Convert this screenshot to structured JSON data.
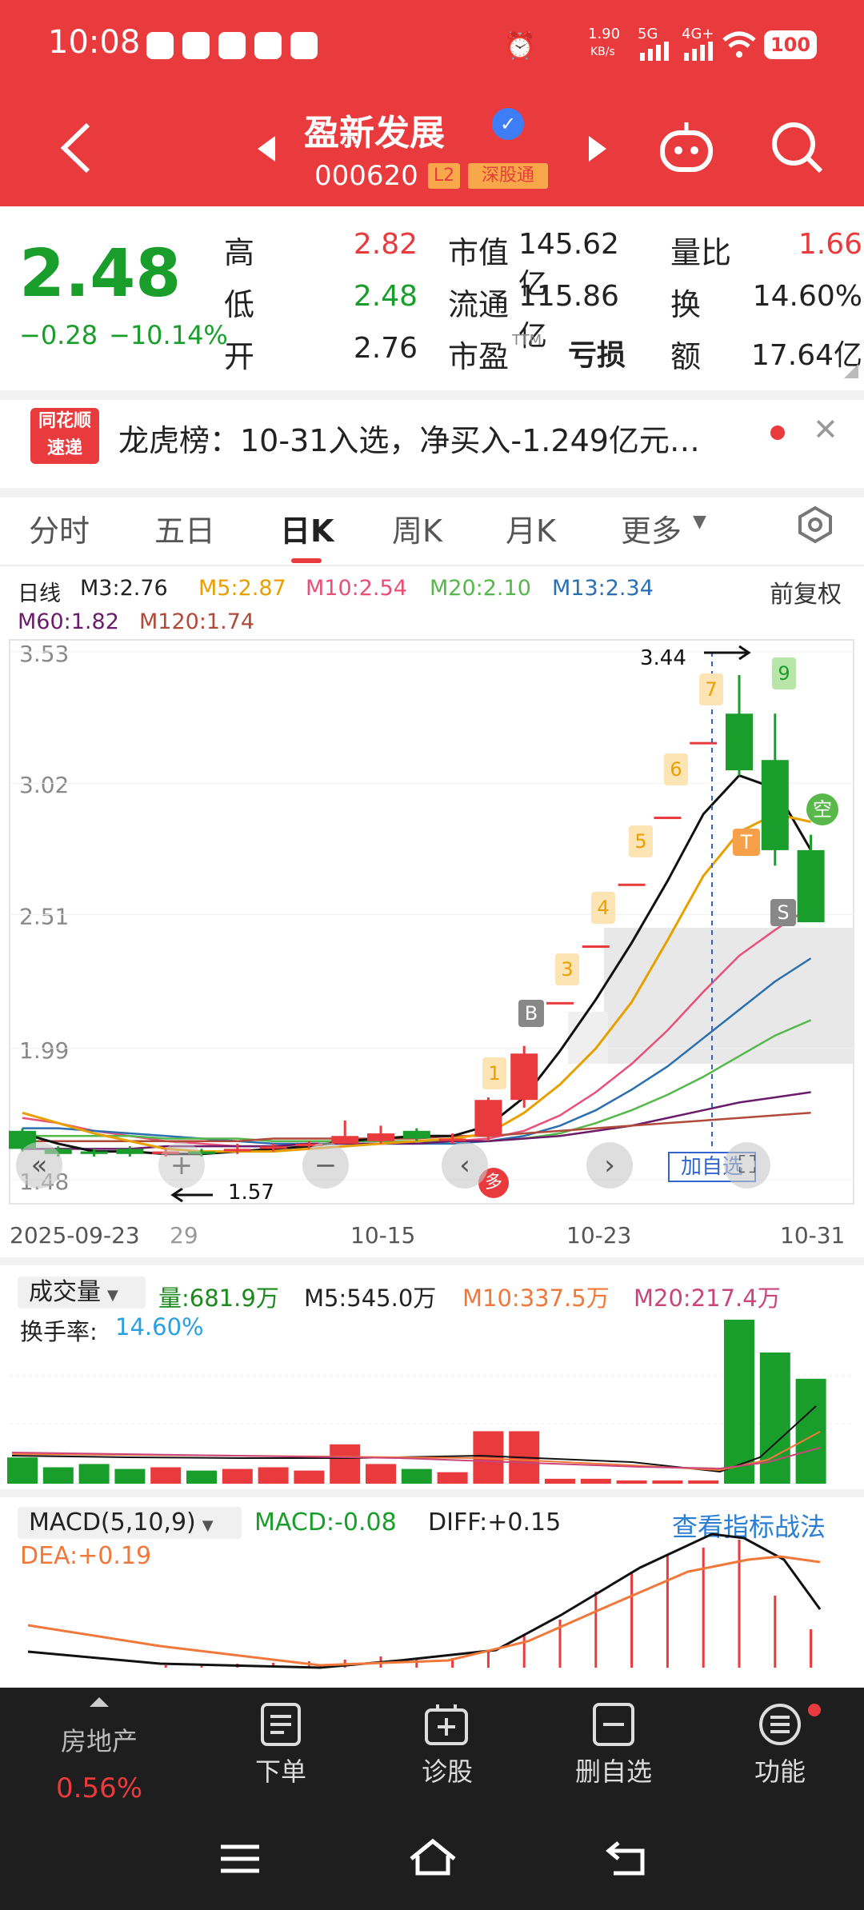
{
  "status": {
    "time": "10:08",
    "speed": "1.90",
    "speed_unit": "KB/s",
    "net1": "5G",
    "net2": "4G+",
    "battery": "100"
  },
  "header": {
    "name": "盈新发展",
    "code": "000620",
    "tag_l2": "L2",
    "tag_sgt": "深股通"
  },
  "quote": {
    "price": "2.48",
    "change": "−0.28",
    "pct": "−10.14%",
    "high_l": "高",
    "high": "2.82",
    "low_l": "低",
    "low": "2.48",
    "open_l": "开",
    "open": "2.76",
    "mcap_l": "市值",
    "mcap": "145.62亿",
    "float_l": "流通",
    "float": "115.86亿",
    "pe_l": "市盈",
    "pe_sup": "TTM",
    "pe": "亏损",
    "vr_l": "量比",
    "vr": "1.66",
    "turn_l": "换",
    "turn": "14.60%",
    "amt_l": "额",
    "amt": "17.64亿"
  },
  "news": {
    "logo_top": "同花顺",
    "logo_bot": "速递",
    "text": "龙虎榜：10-31入选，净买入-1.249亿元…"
  },
  "tabs": [
    "分时",
    "五日",
    "日K",
    "周K",
    "月K",
    "更多"
  ],
  "kline": {
    "legend": [
      {
        "t": "日线",
        "c": "#222"
      },
      {
        "t": "M3:2.76",
        "c": "#222"
      },
      {
        "t": "M5:2.87",
        "c": "#e8a000"
      },
      {
        "t": "M10:2.54",
        "c": "#e8507a"
      },
      {
        "t": "M20:2.10",
        "c": "#55b84a"
      },
      {
        "t": "M13:2.34",
        "c": "#2a6fb0"
      },
      {
        "t": "M60:1.82",
        "c": "#6a1b6a"
      },
      {
        "t": "M120:1.74",
        "c": "#b04a3a"
      }
    ],
    "fq": "前复权",
    "y_labels": [
      "3.53",
      "3.02",
      "2.51",
      "1.99",
      "1.48"
    ],
    "x_labels": [
      "2025-09-23",
      "29",
      "10-15",
      "10-23",
      "10-31"
    ],
    "hi": "3.44",
    "lo": "1.57",
    "add_fav": "加自选",
    "nums": [
      "1",
      "3",
      "4",
      "5",
      "6",
      "7",
      "9"
    ],
    "sig_b": "B",
    "sig_s": "S",
    "sig_t": "T",
    "sig_kong": "空",
    "sig_duo": "多"
  },
  "chart_data": {
    "type": "candlestick",
    "ylim": [
      1.48,
      3.53
    ],
    "candles": [
      {
        "o": 1.67,
        "c": 1.6,
        "h": 1.68,
        "l": 1.59
      },
      {
        "o": 1.6,
        "c": 1.58,
        "h": 1.61,
        "l": 1.57
      },
      {
        "o": 1.59,
        "c": 1.58,
        "h": 1.6,
        "l": 1.57
      },
      {
        "o": 1.6,
        "c": 1.58,
        "h": 1.61,
        "l": 1.57
      },
      {
        "o": 1.58,
        "c": 1.59,
        "h": 1.6,
        "l": 1.57
      },
      {
        "o": 1.59,
        "c": 1.58,
        "h": 1.6,
        "l": 1.57
      },
      {
        "o": 1.59,
        "c": 1.6,
        "h": 1.62,
        "l": 1.58
      },
      {
        "o": 1.6,
        "c": 1.61,
        "h": 1.62,
        "l": 1.59
      },
      {
        "o": 1.61,
        "c": 1.62,
        "h": 1.63,
        "l": 1.6
      },
      {
        "o": 1.62,
        "c": 1.65,
        "h": 1.71,
        "l": 1.62
      },
      {
        "o": 1.63,
        "c": 1.66,
        "h": 1.69,
        "l": 1.62
      },
      {
        "o": 1.67,
        "c": 1.64,
        "h": 1.68,
        "l": 1.63
      },
      {
        "o": 1.63,
        "c": 1.64,
        "h": 1.66,
        "l": 1.62
      },
      {
        "o": 1.65,
        "c": 1.79,
        "h": 1.8,
        "l": 1.63
      },
      {
        "o": 1.79,
        "c": 1.97,
        "h": 2.0,
        "l": 1.76
      },
      {
        "o": 2.17,
        "c": 2.17,
        "h": 2.17,
        "l": 2.17
      },
      {
        "o": 2.39,
        "c": 2.39,
        "h": 2.39,
        "l": 2.39
      },
      {
        "o": 2.63,
        "c": 2.63,
        "h": 2.63,
        "l": 2.63
      },
      {
        "o": 2.89,
        "c": 2.89,
        "h": 2.89,
        "l": 2.89
      },
      {
        "o": 3.18,
        "c": 3.18,
        "h": 3.18,
        "l": 3.18
      },
      {
        "o": 3.29,
        "c": 3.07,
        "h": 3.44,
        "l": 3.05
      },
      {
        "o": 3.11,
        "c": 2.76,
        "h": 3.29,
        "l": 2.7
      },
      {
        "o": 2.76,
        "c": 2.48,
        "h": 2.82,
        "l": 2.48
      }
    ],
    "ma": {
      "M3": [
        1.66,
        1.62,
        1.59,
        1.59,
        1.58,
        1.58,
        1.59,
        1.6,
        1.61,
        1.63,
        1.64,
        1.65,
        1.65,
        1.69,
        1.8,
        1.98,
        2.18,
        2.4,
        2.64,
        2.9,
        3.05,
        3.0,
        2.76
      ],
      "M5": [
        1.74,
        1.7,
        1.66,
        1.63,
        1.6,
        1.59,
        1.59,
        1.59,
        1.6,
        1.61,
        1.62,
        1.63,
        1.64,
        1.66,
        1.74,
        1.85,
        1.99,
        2.17,
        2.41,
        2.66,
        2.83,
        2.9,
        2.87
      ]
    }
  },
  "volume": {
    "title": "成交量",
    "vol": "量:681.9万",
    "m5": "M5:545.0万",
    "m10": "M10:337.5万",
    "m20": "M20:217.4万",
    "turn_l": "换手率:",
    "turn": "14.60%",
    "bars": [
      0.16,
      0.1,
      0.12,
      0.09,
      0.1,
      0.08,
      0.09,
      0.1,
      0.08,
      0.24,
      0.12,
      0.09,
      0.07,
      0.32,
      0.32,
      0.03,
      0.03,
      0.02,
      0.02,
      0.02,
      1.0,
      0.8,
      0.64
    ]
  },
  "macd": {
    "title": "MACD(5,10,9)",
    "macd": "MACD:-0.08",
    "diff": "DIFF:+0.15",
    "dea": "DEA:+0.19",
    "link": "查看指标战法"
  },
  "bottom": {
    "sector": "房地产",
    "sector_pct": "0.56%",
    "b1": "下单",
    "b2": "诊股",
    "b3": "删自选",
    "b4": "功能"
  },
  "colors": {
    "up": "#e93b3d",
    "down": "#1a9e2b",
    "header": "#e93b3d"
  }
}
